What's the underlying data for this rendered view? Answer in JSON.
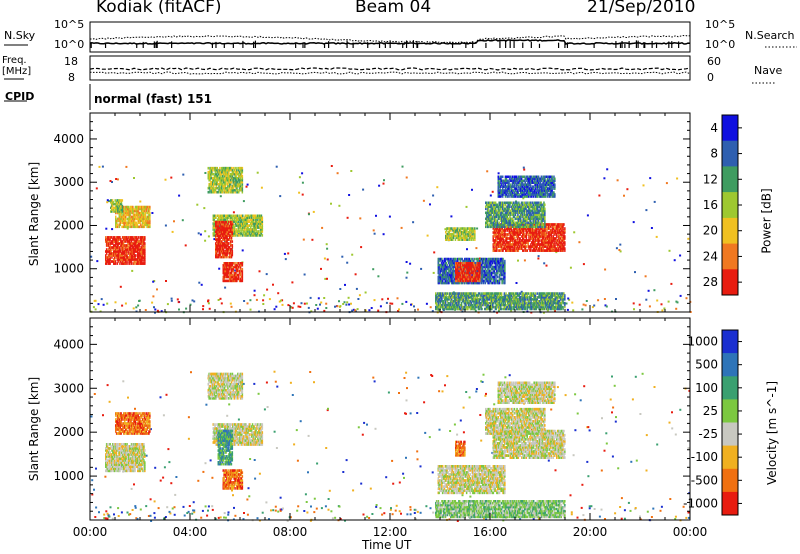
{
  "header": {
    "station": "Kodiak (fitACF)",
    "beam": "Beam 04",
    "date": "21/Sep/2010"
  },
  "summary_panels": {
    "nsky_label": "N.Sky",
    "nsearch_label": "N.Search",
    "nsky_ticks": [
      "10^5",
      "10^0"
    ],
    "nsearch_ticks": [
      "10^5",
      "10^0"
    ],
    "freq_label_1": "Freq.",
    "freq_label_2": "[MHz]",
    "freq_ticks": [
      "18",
      "8"
    ],
    "nave_label": "Nave",
    "nave_ticks": [
      "60",
      "0"
    ],
    "cpid_label": "CPID",
    "cpid_value": "normal (fast) 151"
  },
  "chart_data": [
    {
      "type": "heatmap",
      "quantity": "Power",
      "ylabel": "Slant Range [km]",
      "xlabel": "",
      "x_ticks": [
        "00:00",
        "04:00",
        "08:00",
        "12:00",
        "16:00",
        "20:00",
        "00:00"
      ],
      "xlim_hours": [
        0,
        24
      ],
      "ylim": [
        0,
        4600
      ],
      "y_ticks": [
        1000,
        2000,
        3000,
        4000
      ],
      "colorbar_label": "Power [dB]",
      "colorbar_ticks": [
        4,
        8,
        12,
        16,
        20,
        24,
        28
      ],
      "colorbar_colors": [
        "#1010e0",
        "#2e5fb0",
        "#3f9c60",
        "#9ec830",
        "#f0c020",
        "#f07820",
        "#e81c10"
      ],
      "patches": [
        {
          "t0": 0.6,
          "t1": 2.2,
          "r0": 1150,
          "r1": 1800,
          "level": 6
        },
        {
          "t0": 1.0,
          "t1": 2.4,
          "r0": 2000,
          "r1": 2500,
          "level": 4
        },
        {
          "t0": 0.8,
          "t1": 1.3,
          "r0": 2350,
          "r1": 2650,
          "level": 3
        },
        {
          "t0": 4.7,
          "t1": 6.1,
          "r0": 2800,
          "r1": 3400,
          "level": 3
        },
        {
          "t0": 4.9,
          "t1": 6.9,
          "r0": 1800,
          "r1": 2300,
          "level": 3
        },
        {
          "t0": 5.0,
          "t1": 5.7,
          "r0": 1300,
          "r1": 2150,
          "level": 6
        },
        {
          "t0": 5.3,
          "t1": 6.1,
          "r0": 750,
          "r1": 1200,
          "level": 6
        },
        {
          "t0": 13.8,
          "t1": 19.0,
          "r0": 100,
          "r1": 500,
          "level": 2
        },
        {
          "t0": 13.9,
          "t1": 16.6,
          "r0": 700,
          "r1": 1300,
          "level": 1
        },
        {
          "t0": 14.6,
          "t1": 15.6,
          "r0": 750,
          "r1": 1200,
          "level": 6
        },
        {
          "t0": 14.2,
          "t1": 15.4,
          "r0": 1700,
          "r1": 2000,
          "level": 3
        },
        {
          "t0": 16.1,
          "t1": 19.0,
          "r0": 1450,
          "r1": 2100,
          "level": 6
        },
        {
          "t0": 15.8,
          "t1": 18.2,
          "r0": 2000,
          "r1": 2600,
          "level": 2
        },
        {
          "t0": 16.3,
          "t1": 18.6,
          "r0": 2700,
          "r1": 3200,
          "level": 1
        }
      ]
    },
    {
      "type": "heatmap",
      "quantity": "Velocity",
      "ylabel": "Slant Range [km]",
      "xlabel": "Time UT",
      "x_ticks": [
        "00:00",
        "04:00",
        "08:00",
        "12:00",
        "16:00",
        "20:00",
        "00:00"
      ],
      "xlim_hours": [
        0,
        24
      ],
      "ylim": [
        0,
        4600
      ],
      "y_ticks": [
        1000,
        2000,
        3000,
        4000
      ],
      "colorbar_label": "Velocity [m s^-1]",
      "colorbar_ticks": [
        1000,
        500,
        100,
        25,
        -25,
        -100,
        -500,
        -1000
      ],
      "colorbar_colors": [
        "#1a2fd0",
        "#2e74b8",
        "#3aa070",
        "#7cc840",
        "#c8c8c0",
        "#f0b020",
        "#f07010",
        "#e81c10"
      ],
      "patches": [
        {
          "t0": 0.6,
          "t1": 2.2,
          "r0": 1150,
          "r1": 1800,
          "level": 4
        },
        {
          "t0": 1.0,
          "t1": 2.4,
          "r0": 2000,
          "r1": 2500,
          "level": 6
        },
        {
          "t0": 4.7,
          "t1": 6.1,
          "r0": 2800,
          "r1": 3400,
          "level": 4
        },
        {
          "t0": 4.9,
          "t1": 6.9,
          "r0": 1750,
          "r1": 2250,
          "level": 4
        },
        {
          "t0": 5.1,
          "t1": 5.7,
          "r0": 1300,
          "r1": 2100,
          "level": 2
        },
        {
          "t0": 5.3,
          "t1": 6.1,
          "r0": 750,
          "r1": 1200,
          "level": 6
        },
        {
          "t0": 13.8,
          "t1": 19.0,
          "r0": 100,
          "r1": 500,
          "level": 3
        },
        {
          "t0": 13.9,
          "t1": 16.6,
          "r0": 650,
          "r1": 1300,
          "level": 4
        },
        {
          "t0": 14.6,
          "t1": 15.0,
          "r0": 1500,
          "r1": 1850,
          "level": 6
        },
        {
          "t0": 16.1,
          "t1": 19.0,
          "r0": 1450,
          "r1": 2100,
          "level": 4
        },
        {
          "t0": 15.8,
          "t1": 18.2,
          "r0": 2000,
          "r1": 2600,
          "level": 4
        },
        {
          "t0": 16.3,
          "t1": 18.6,
          "r0": 2700,
          "r1": 3200,
          "level": 4
        }
      ]
    }
  ]
}
